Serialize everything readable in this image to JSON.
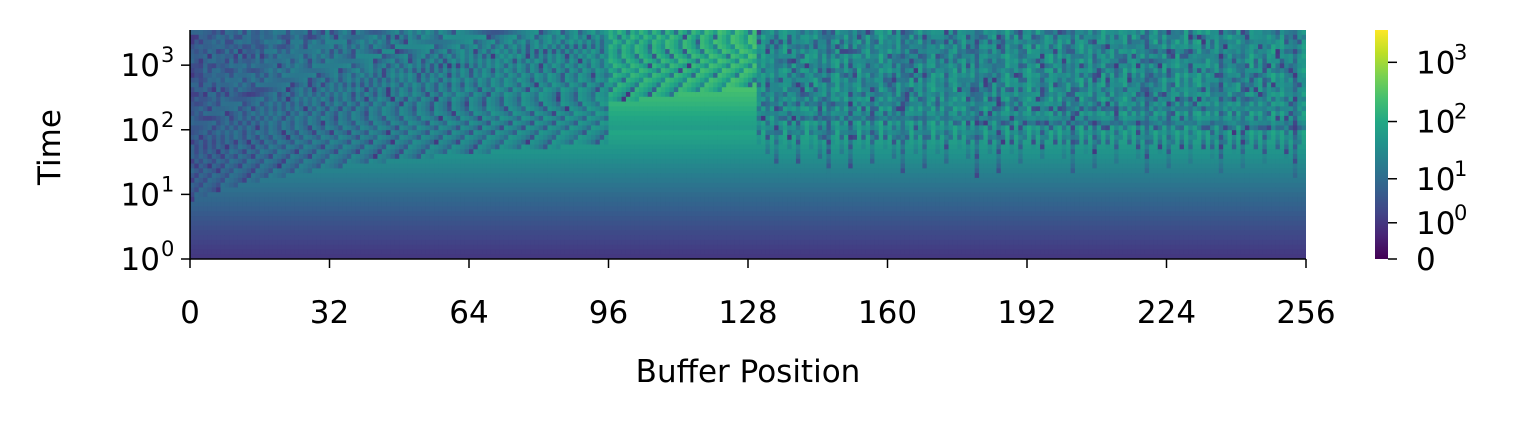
{
  "chart_data": {
    "type": "heatmap",
    "title": "",
    "xlabel": "Buffer Position",
    "ylabel": "Time",
    "x_range": [
      0,
      256
    ],
    "x_ticks": [
      0,
      32,
      64,
      96,
      128,
      160,
      192,
      224,
      256
    ],
    "x_tick_labels": [
      "0",
      "32",
      "64",
      "96",
      "128",
      "160",
      "192",
      "224",
      "256"
    ],
    "y_scale": "symlog",
    "y_ticks": [
      {
        "value": 1,
        "base": "10",
        "exp": "0"
      },
      {
        "value": 10,
        "base": "10",
        "exp": "1"
      },
      {
        "value": 100,
        "base": "10",
        "exp": "2"
      },
      {
        "value": 1000,
        "base": "10",
        "exp": "3"
      }
    ],
    "colorbar": {
      "colormap": "viridis",
      "scale": "symlog",
      "ticks": [
        {
          "value": 0,
          "label": "0"
        },
        {
          "value": 1,
          "base": "10",
          "exp": "0"
        },
        {
          "value": 10,
          "base": "10",
          "exp": "1"
        },
        {
          "value": 100,
          "base": "10",
          "exp": "2"
        },
        {
          "value": 1000,
          "base": "10",
          "exp": "3"
        }
      ]
    },
    "grid": false,
    "regions": [
      {
        "x_start": 0,
        "x_end": 96,
        "pattern": "periodic resets, spacing growing with position"
      },
      {
        "x_start": 96,
        "x_end": 130,
        "pattern": "sparse horizontal bands"
      },
      {
        "x_start": 130,
        "x_end": 256,
        "pattern": "dense stepped resets"
      }
    ]
  }
}
